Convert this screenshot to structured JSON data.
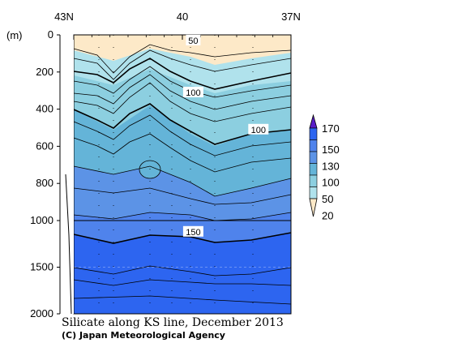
{
  "chart_data": {
    "type": "heatmap",
    "title": "Silicate along KS line, December 2013",
    "credit": "(C) Japan Meteorological Agency",
    "xlabel": "",
    "ylabel": "(m)",
    "x_ticks": [
      "43N",
      "40",
      "37N"
    ],
    "y_ticks": [
      "0",
      "200",
      "400",
      "600",
      "800",
      "1000",
      "1500",
      "2000"
    ],
    "y_scale_break_depth": 1000,
    "ylim": [
      0,
      2000
    ],
    "xlim_lat": [
      43,
      37
    ],
    "contour_labels": [
      {
        "text": "50",
        "lat": 39.7,
        "depth": 30
      },
      {
        "text": "100",
        "lat": 39.7,
        "depth": 310
      },
      {
        "text": "100",
        "lat": 37.9,
        "depth": 510
      },
      {
        "text": "150",
        "lat": 39.7,
        "depth": 1120
      }
    ],
    "colorbar": {
      "levels": [
        "20",
        "50",
        "100",
        "130",
        "150",
        "170"
      ],
      "colors": [
        "#fde9c8",
        "#b0e2ec",
        "#8ccfe0",
        "#64b4d8",
        "#5c93e6",
        "#4f83ec",
        "#2d65f0",
        "#5a1ec8"
      ]
    },
    "legend_position": "right"
  }
}
